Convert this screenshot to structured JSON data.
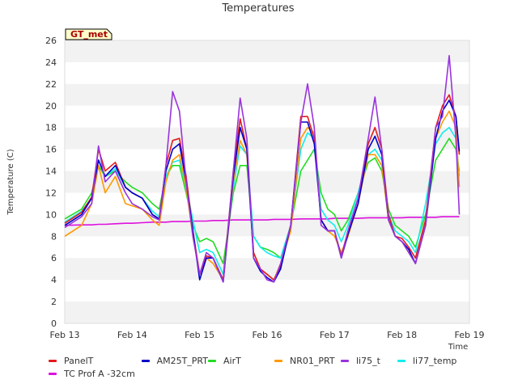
{
  "chart_data": {
    "type": "line",
    "title": "Temperatures",
    "ylabel": "Temperature (C)",
    "xlabel": "Time",
    "ylim": [
      0,
      26
    ],
    "yticks": [
      0,
      2,
      4,
      6,
      8,
      10,
      12,
      14,
      16,
      18,
      20,
      22,
      24,
      26
    ],
    "xlim": [
      "Feb 13",
      "Feb 19"
    ],
    "xticks": [
      "Feb 13",
      "Feb 14",
      "Feb 15",
      "Feb 16",
      "Feb 17",
      "Feb 18",
      "Feb 19"
    ],
    "grid": "horizontal banded",
    "badge": "GT_met",
    "x_days": [
      0,
      0.25,
      0.4,
      0.5,
      0.6,
      0.75,
      0.9,
      1.0,
      1.15,
      1.3,
      1.4,
      1.5,
      1.6,
      1.7,
      1.8,
      1.9,
      2.0,
      2.1,
      2.2,
      2.35,
      2.5,
      2.6,
      2.7,
      2.8,
      2.9,
      3.0,
      3.1,
      3.2,
      3.35,
      3.5,
      3.6,
      3.7,
      3.8,
      3.9,
      4.0,
      4.1,
      4.2,
      4.35,
      4.5,
      4.6,
      4.7,
      4.8,
      4.9,
      5.0,
      5.1,
      5.2,
      5.35,
      5.5,
      5.6,
      5.7,
      5.8,
      5.85
    ],
    "series": [
      {
        "name": "PanelT",
        "color": "#e31a1c",
        "values": [
          9.2,
          10.2,
          11.6,
          16.0,
          14.0,
          14.8,
          12.5,
          12.0,
          11.5,
          10.0,
          9.6,
          14.5,
          16.8,
          17.0,
          13.5,
          8.5,
          4.5,
          6.2,
          6.0,
          4.0,
          14.0,
          18.8,
          16.0,
          6.5,
          5.0,
          4.5,
          4.0,
          5.2,
          9.0,
          19.0,
          19.0,
          17.0,
          9.5,
          8.5,
          8.5,
          6.2,
          8.5,
          11.5,
          16.5,
          18.0,
          16.0,
          10.0,
          8.0,
          7.8,
          7.0,
          6.0,
          9.5,
          18.0,
          20.0,
          21.0,
          19.0,
          15.5
        ]
      },
      {
        "name": "TC Prof A -32cm",
        "color": "#dd11dd",
        "values": [
          9.0,
          9.05,
          9.05,
          9.1,
          9.1,
          9.15,
          9.2,
          9.2,
          9.25,
          9.3,
          9.3,
          9.3,
          9.35,
          9.35,
          9.35,
          9.4,
          9.4,
          9.4,
          9.45,
          9.45,
          9.5,
          9.5,
          9.5,
          9.5,
          9.5,
          9.5,
          9.55,
          9.55,
          9.55,
          9.6,
          9.6,
          9.6,
          9.6,
          9.6,
          9.65,
          9.65,
          9.65,
          9.65,
          9.7,
          9.7,
          9.7,
          9.7,
          9.7,
          9.7,
          9.75,
          9.75,
          9.75,
          9.75,
          9.8,
          9.8,
          9.8,
          9.8
        ]
      },
      {
        "name": "AM25T_PRT",
        "color": "#0000cc",
        "values": [
          9.0,
          10.0,
          11.5,
          15.0,
          13.5,
          14.5,
          12.5,
          12.0,
          11.5,
          10.0,
          9.6,
          14.0,
          16.0,
          16.5,
          13.0,
          8.5,
          4.0,
          6.0,
          6.0,
          3.8,
          13.5,
          18.0,
          16.0,
          6.0,
          4.8,
          4.2,
          3.8,
          5.0,
          9.0,
          18.5,
          18.5,
          16.5,
          9.5,
          8.5,
          8.5,
          6.0,
          8.2,
          11.0,
          16.0,
          17.2,
          15.5,
          9.5,
          8.0,
          7.5,
          6.8,
          5.5,
          9.0,
          17.0,
          19.5,
          20.5,
          19.0,
          15.8
        ]
      },
      {
        "name": "AirT",
        "color": "#22dd22",
        "values": [
          9.6,
          10.5,
          12.0,
          14.5,
          13.5,
          14.0,
          13.0,
          12.5,
          12.0,
          11.0,
          10.5,
          13.5,
          14.5,
          14.5,
          12.0,
          9.0,
          7.5,
          7.8,
          7.5,
          5.5,
          12.0,
          14.5,
          14.5,
          8.0,
          7.0,
          6.8,
          6.5,
          6.0,
          9.0,
          14.0,
          15.0,
          16.0,
          12.0,
          10.5,
          10.0,
          8.5,
          9.5,
          12.0,
          14.8,
          15.2,
          14.0,
          10.5,
          9.0,
          8.5,
          8.0,
          7.0,
          10.0,
          15.0,
          16.0,
          17.0,
          16.0,
          14.0
        ]
      },
      {
        "name": "NR01_PRT",
        "color": "#ff9900",
        "values": [
          8.0,
          9.0,
          11.0,
          14.5,
          12.0,
          13.5,
          11.0,
          10.8,
          10.5,
          9.5,
          9.0,
          13.0,
          15.0,
          15.5,
          12.5,
          8.0,
          4.5,
          6.0,
          5.5,
          4.0,
          13.0,
          16.8,
          15.5,
          6.5,
          5.0,
          4.5,
          4.0,
          5.5,
          8.5,
          17.0,
          18.0,
          17.5,
          9.5,
          8.5,
          8.0,
          6.5,
          8.0,
          11.0,
          15.5,
          15.5,
          14.5,
          9.5,
          8.0,
          7.5,
          6.5,
          5.5,
          9.0,
          17.0,
          18.5,
          19.5,
          18.0,
          12.5
        ]
      },
      {
        "name": "li75_t",
        "color": "#9933dd",
        "values": [
          8.8,
          9.8,
          11.0,
          16.3,
          13.0,
          14.0,
          12.0,
          11.0,
          10.5,
          9.8,
          9.5,
          14.5,
          21.3,
          19.5,
          13.0,
          8.0,
          4.5,
          6.5,
          6.0,
          3.8,
          14.0,
          20.7,
          17.0,
          6.0,
          5.0,
          4.0,
          3.8,
          5.5,
          9.0,
          18.5,
          22.0,
          18.0,
          9.0,
          8.5,
          8.5,
          6.0,
          8.5,
          11.5,
          17.0,
          20.8,
          16.0,
          9.5,
          8.0,
          7.5,
          6.5,
          5.5,
          9.0,
          18.0,
          19.0,
          24.6,
          17.0,
          10.0
        ]
      },
      {
        "name": "li77_temp",
        "color": "#11eeee",
        "values": [
          9.3,
          10.3,
          11.5,
          15.0,
          13.5,
          14.2,
          12.5,
          12.0,
          11.5,
          10.3,
          9.8,
          13.5,
          14.8,
          15.0,
          12.5,
          9.5,
          6.5,
          6.8,
          6.5,
          4.5,
          12.5,
          16.3,
          15.5,
          8.0,
          7.0,
          6.5,
          6.2,
          6.0,
          9.0,
          16.0,
          17.5,
          17.0,
          10.5,
          9.5,
          9.0,
          7.5,
          9.0,
          12.0,
          15.5,
          16.0,
          15.0,
          10.0,
          8.5,
          8.0,
          7.5,
          6.5,
          11.0,
          16.5,
          17.5,
          18.0,
          17.0,
          13.5
        ]
      }
    ],
    "legend": {
      "placement": "bottom",
      "rows": [
        [
          "PanelT",
          "AM25T_PRT",
          "AirT",
          "NR01_PRT",
          "li75_t",
          "li77_temp"
        ],
        [
          "TC Prof A -32cm"
        ]
      ]
    }
  }
}
